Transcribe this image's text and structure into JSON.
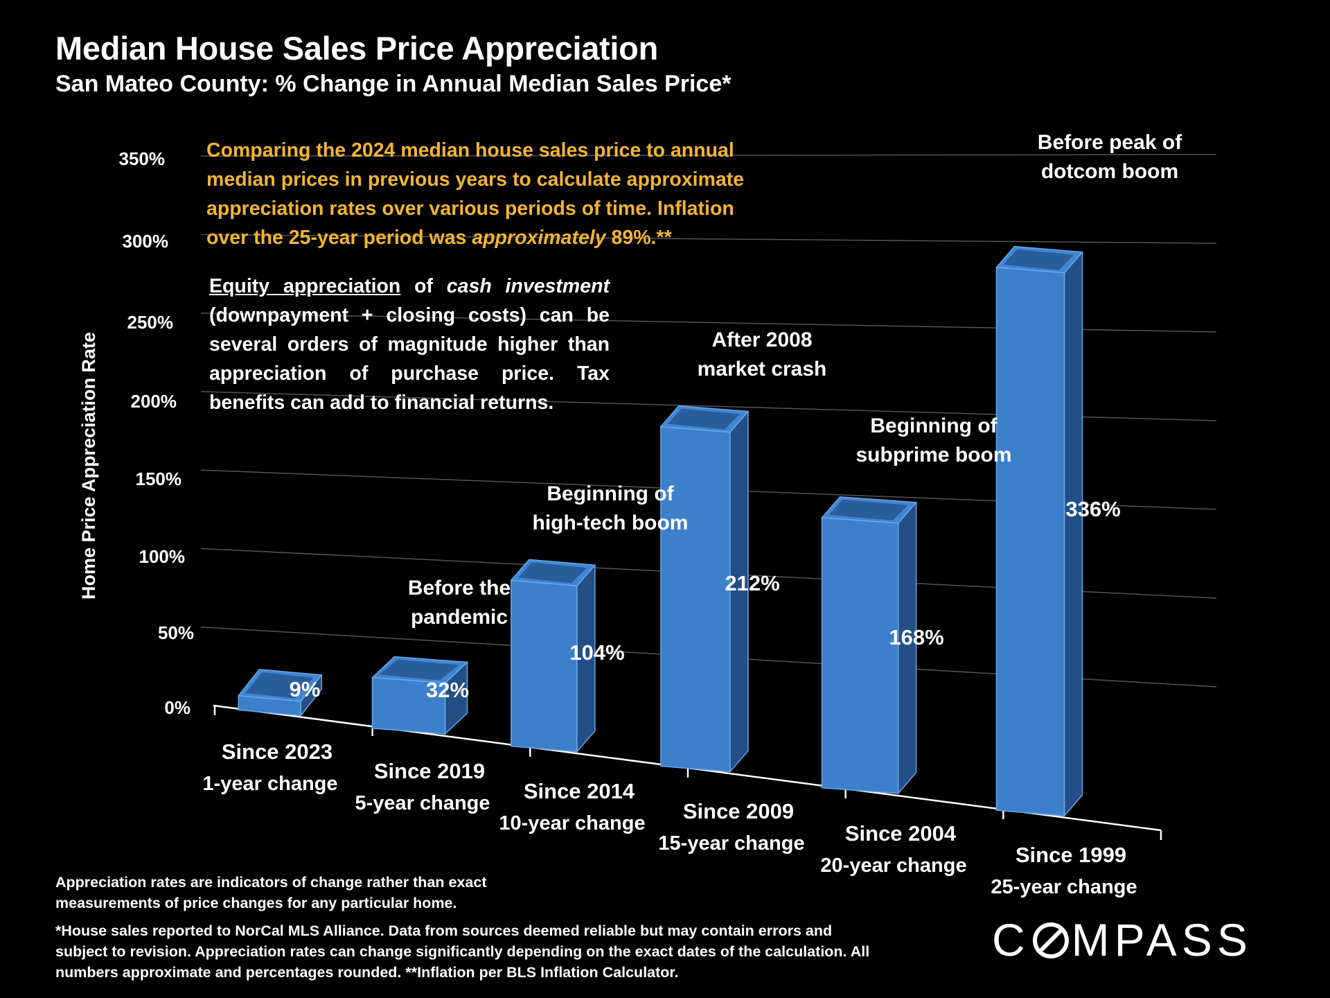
{
  "header": {
    "title": "Median House Sales Price Appreciation",
    "subtitle": "San Mateo County: % Change in Annual Median Sales Price*"
  },
  "notes": {
    "yellow_part1": "Comparing the 2024 median house sales price to annual median prices in previous years to calculate approximate appreciation rates over various periods of time. Inflation over the 25-year period was ",
    "yellow_emph": "approximately",
    "yellow_part2": " 89%.**",
    "white_underlined": "Equity appreciation",
    "white_part1": " of ",
    "white_emph": "cash investment",
    "white_part2": " (downpayment + closing costs) can be several orders of magnitude higher than appreciation of purchase price. Tax benefits can add to financial returns."
  },
  "footnotes": {
    "line1": "Appreciation rates are indicators of change rather than exact measurements of price changes for any particular home.",
    "line2": "*House sales reported to NorCal MLS Alliance. Data from sources deemed reliable but may contain errors and subject to revision. Appreciation rates can change significantly depending on the exact dates of the calculation. All numbers  approximate and percentages rounded. **Inflation per BLS Inflation Calculator."
  },
  "brand": {
    "name": "COMPASS",
    "left": "C",
    "right": "MPASS"
  },
  "chart_data": {
    "type": "bar",
    "ylabel": "Home Price Appreciation Rate",
    "ylim": [
      0,
      350
    ],
    "yticks": [
      0,
      50,
      100,
      150,
      200,
      250,
      300,
      350
    ],
    "ytick_labels": [
      "0%",
      "50%",
      "100%",
      "150%",
      "200%",
      "250%",
      "300%",
      "350%"
    ],
    "grid": true,
    "categories": [
      "Since 2023",
      "Since 2019",
      "Since 2014",
      "Since 2009",
      "Since 2004",
      "Since 1999"
    ],
    "category_sublabels": [
      "1-year change",
      "5-year change",
      "10-year change",
      "15-year change",
      "20-year change",
      "25-year change"
    ],
    "values": [
      9,
      32,
      104,
      212,
      168,
      336
    ],
    "value_labels": [
      "9%",
      "32%",
      "104%",
      "212%",
      "168%",
      "336%"
    ],
    "annotations": [
      "",
      "Before the\npandemic",
      "Beginning of\nhigh-tech boom",
      "After 2008\nmarket crash",
      "Beginning of\nsubprime boom",
      "Before peak of\ndotcom boom"
    ],
    "colors": {
      "bar_front": "#3c7fcb",
      "bar_side": "#234f86",
      "bar_top": "#3f86d4",
      "bar_top_inner": "#2a5d9c",
      "bar_edge": "#6aa7e8",
      "grid": "#555555",
      "axis": "#ffffff"
    }
  }
}
